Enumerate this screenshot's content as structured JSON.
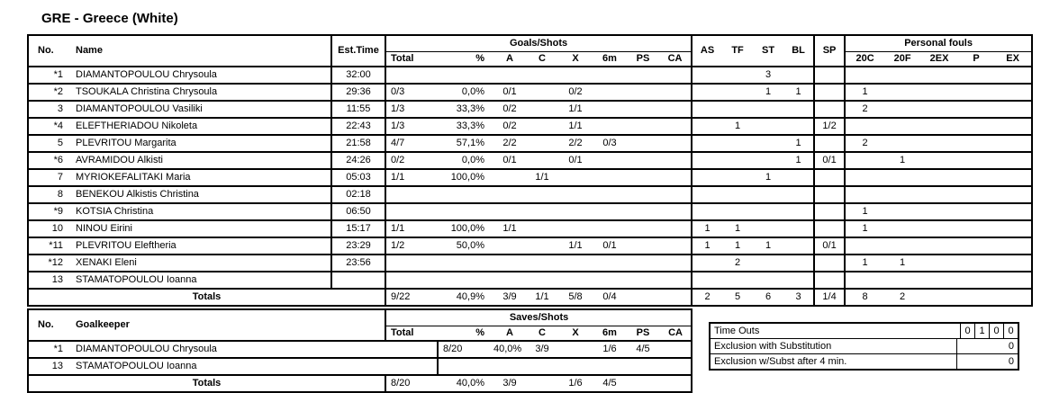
{
  "title": "GRE - Greece (White)",
  "colors": {
    "text": "#000000",
    "background": "#ffffff",
    "border": "#000000"
  },
  "players": {
    "header": {
      "no": "No.",
      "name": "Name",
      "est_time": "Est.Time",
      "goals_shots_group": "Goals/Shots",
      "shot_cols": [
        "Total",
        "%",
        "A",
        "C",
        "X",
        "6m",
        "PS",
        "CA"
      ],
      "stat_cols": [
        "AS",
        "TF",
        "ST",
        "BL",
        "SP"
      ],
      "fouls_group": "Personal fouls",
      "foul_cols": [
        "20C",
        "20F",
        "2EX",
        "P",
        "EX"
      ]
    },
    "rows": [
      [
        "*1",
        "DIAMANTOPOULOU Chrysoula",
        "32:00",
        "",
        "",
        "",
        "",
        "",
        "",
        "",
        "",
        "",
        "",
        "3",
        "",
        "",
        "",
        "",
        "",
        "",
        ""
      ],
      [
        "*2",
        "TSOUKALA Christina Chrysoula",
        "29:36",
        "0/3",
        "0,0%",
        "0/1",
        "",
        "0/2",
        "",
        "",
        "",
        "",
        "",
        "1",
        "1",
        "",
        "1",
        "",
        "",
        "",
        ""
      ],
      [
        "3",
        "DIAMANTOPOULOU Vasiliki",
        "11:55",
        "1/3",
        "33,3%",
        "0/2",
        "",
        "1/1",
        "",
        "",
        "",
        "",
        "",
        "",
        "",
        "",
        "2",
        "",
        "",
        "",
        ""
      ],
      [
        "*4",
        "ELEFTHERIADOU Nikoleta",
        "22:43",
        "1/3",
        "33,3%",
        "0/2",
        "",
        "1/1",
        "",
        "",
        "",
        "",
        "1",
        "",
        "",
        "1/2",
        "",
        "",
        "",
        "",
        ""
      ],
      [
        "5",
        "PLEVRITOU Margarita",
        "21:58",
        "4/7",
        "57,1%",
        "2/2",
        "",
        "2/2",
        "0/3",
        "",
        "",
        "",
        "",
        "",
        "1",
        "",
        "2",
        "",
        "",
        "",
        ""
      ],
      [
        "*6",
        "AVRAMIDOU Alkisti",
        "24:26",
        "0/2",
        "0,0%",
        "0/1",
        "",
        "0/1",
        "",
        "",
        "",
        "",
        "",
        "",
        "1",
        "0/1",
        "",
        "1",
        "",
        "",
        ""
      ],
      [
        "7",
        "MYRIOKEFALITAKI Maria",
        "05:03",
        "1/1",
        "100,0%",
        "",
        "1/1",
        "",
        "",
        "",
        "",
        "",
        "",
        "1",
        "",
        "",
        "",
        "",
        "",
        "",
        ""
      ],
      [
        "8",
        "BENEKOU Alkistis Christina",
        "02:18",
        "",
        "",
        "",
        "",
        "",
        "",
        "",
        "",
        "",
        "",
        "",
        "",
        "",
        "",
        "",
        "",
        "",
        ""
      ],
      [
        "*9",
        "KOTSIA Christina",
        "06:50",
        "",
        "",
        "",
        "",
        "",
        "",
        "",
        "",
        "",
        "",
        "",
        "",
        "",
        "1",
        "",
        "",
        "",
        ""
      ],
      [
        "10",
        "NINOU Eirini",
        "15:17",
        "1/1",
        "100,0%",
        "1/1",
        "",
        "",
        "",
        "",
        "",
        "1",
        "1",
        "",
        "",
        "",
        "1",
        "",
        "",
        "",
        ""
      ],
      [
        "*11",
        "PLEVRITOU Eleftheria",
        "23:29",
        "1/2",
        "50,0%",
        "",
        "",
        "1/1",
        "0/1",
        "",
        "",
        "1",
        "1",
        "1",
        "",
        "0/1",
        "",
        "",
        "",
        "",
        ""
      ],
      [
        "*12",
        "XENAKI Eleni",
        "23:56",
        "",
        "",
        "",
        "",
        "",
        "",
        "",
        "",
        "",
        "2",
        "",
        "",
        "",
        "1",
        "1",
        "",
        "",
        ""
      ],
      [
        "13",
        "STAMATOPOULOU Ioanna",
        "",
        "",
        "",
        "",
        "",
        "",
        "",
        "",
        "",
        "",
        "",
        "",
        "",
        "",
        "",
        "",
        "",
        "",
        ""
      ]
    ],
    "totals_label": "Totals",
    "totals": [
      "9/22",
      "40,9%",
      "3/9",
      "1/1",
      "5/8",
      "0/4",
      "",
      "",
      "2",
      "5",
      "6",
      "3",
      "1/4",
      "8",
      "2",
      "",
      "",
      ""
    ]
  },
  "goalkeepers": {
    "header": {
      "no": "No.",
      "name": "Goalkeeper",
      "saves_group": "Saves/Shots",
      "shot_cols": [
        "Total",
        "%",
        "A",
        "C",
        "X",
        "6m",
        "PS",
        "CA"
      ]
    },
    "rows": [
      [
        "*1",
        "DIAMANTOPOULOU Chrysoula",
        "8/20",
        "40,0%",
        "3/9",
        "",
        "1/6",
        "4/5",
        "",
        ""
      ],
      [
        "13",
        "STAMATOPOULOU Ioanna",
        "",
        "",
        "",
        "",
        "",
        "",
        "",
        ""
      ]
    ],
    "totals_label": "Totals",
    "totals": [
      "8/20",
      "40,0%",
      "3/9",
      "",
      "1/6",
      "4/5",
      "",
      ""
    ]
  },
  "penalty_summary": {
    "timeouts_label": "Time Outs",
    "timeouts_cells": [
      "0",
      "1",
      "0",
      "0"
    ],
    "rows": [
      {
        "label": "Exclusion with Substitution",
        "value": "0"
      },
      {
        "label": "Exclusion w/Subst after 4 min.",
        "value": "0"
      }
    ]
  }
}
